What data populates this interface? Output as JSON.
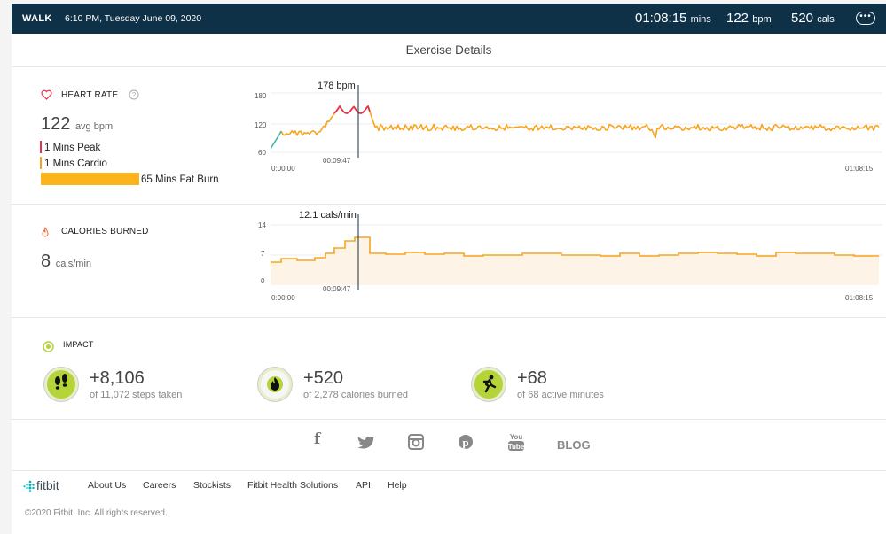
{
  "header": {
    "activity": "WALK",
    "datetime": "6:10 PM, Tuesday June 09, 2020",
    "duration": "01:08:15",
    "duration_unit": "mins",
    "bpm": "122",
    "bpm_unit": "bpm",
    "cals": "520",
    "cals_unit": "cals",
    "more_icon": "ellipsis-icon"
  },
  "page_title": "Exercise Details",
  "heart_rate": {
    "label": "HEART RATE",
    "value": "122",
    "unit": "avg bpm",
    "zones": [
      {
        "label": "1 Mins Peak",
        "color": "#e7334a"
      },
      {
        "label": "1 Mins Cardio",
        "color": "#f7a521"
      },
      {
        "label": "65 Mins Fat Burn",
        "color": "#fbb41b"
      }
    ],
    "tooltip_value": "178 bpm",
    "tooltip_time": "00:09:47",
    "y_ticks": [
      "180",
      "120",
      "60"
    ],
    "x_start": "0:00:00",
    "x_end": "01:08:15"
  },
  "calories": {
    "label": "CALORIES BURNED",
    "value": "8",
    "unit": "cals/min",
    "tooltip_value": "12.1 cals/min",
    "tooltip_time": "00:09:47",
    "y_ticks": [
      "14",
      "7",
      "0"
    ],
    "x_start": "0:00:00",
    "x_end": "01:08:15"
  },
  "impact": {
    "label": "IMPACT",
    "items": [
      {
        "value": "+8,106",
        "sub": "of 11,072 steps taken",
        "icon": "footsteps-icon"
      },
      {
        "value": "+520",
        "sub": "of 2,278 calories burned",
        "icon": "flame-icon"
      },
      {
        "value": "+68",
        "sub": "of 68 active minutes",
        "icon": "runner-icon"
      }
    ]
  },
  "social": {
    "blog": "BLOG"
  },
  "footer": {
    "logo": "fitbit",
    "links": [
      "About Us",
      "Careers",
      "Stockists",
      "Fitbit Health Solutions",
      "API",
      "Help"
    ],
    "copyright": "©2020 Fitbit, Inc. All rights reserved."
  },
  "colors": {
    "header_bg": "#0f3147",
    "heart_line": "#f7a521",
    "peak": "#e7334a",
    "impact_green": "#b4d43a",
    "calorie_fill": "#fdf3e6"
  }
}
